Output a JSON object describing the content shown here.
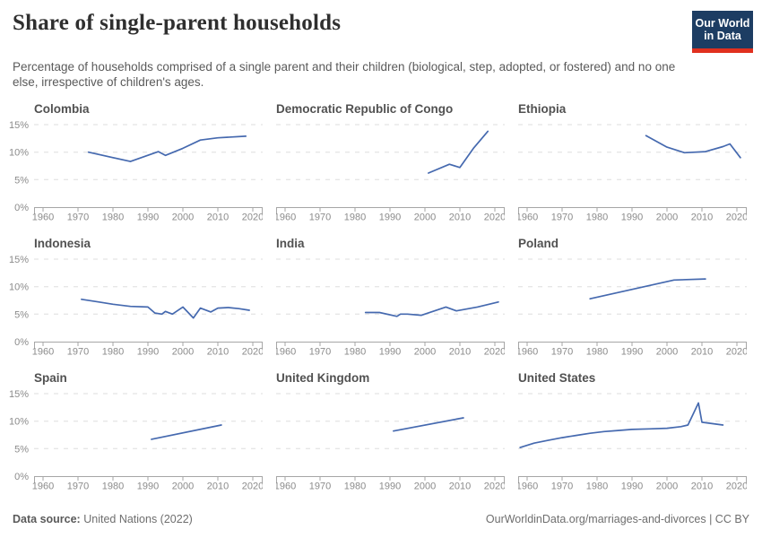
{
  "header": {
    "title": "Share of single-parent households",
    "subtitle": "Percentage of households comprised of a single parent and their children (biological, step, adopted, or fostered) and no one else, irrespective of children's ages.",
    "logo": {
      "line1": "Our World",
      "line2": "in Data",
      "bg": "#1d3d63",
      "accent": "#e0301f"
    }
  },
  "axis": {
    "xticks": [
      1960,
      1970,
      1980,
      1990,
      2000,
      2010,
      2020
    ],
    "yticks": [
      0,
      5,
      10,
      15
    ],
    "ylim": [
      0,
      15
    ],
    "xlim": [
      1957,
      2023
    ],
    "y_suffix": "%",
    "grid": "dashed horizontal lines at 5%, 10%, 15%"
  },
  "chart_data": [
    {
      "type": "line",
      "title": "Colombia",
      "show_y_labels": true,
      "points": [
        [
          1973,
          10.0
        ],
        [
          1985,
          8.3
        ],
        [
          1993,
          10.1
        ],
        [
          1995,
          9.4
        ],
        [
          2000,
          10.7
        ],
        [
          2005,
          12.2
        ],
        [
          2010,
          12.6
        ],
        [
          2018,
          12.9
        ]
      ]
    },
    {
      "type": "line",
      "title": "Democratic Republic of Congo",
      "show_y_labels": false,
      "points": [
        [
          2001,
          6.2
        ],
        [
          2007,
          7.8
        ],
        [
          2010,
          7.2
        ],
        [
          2014,
          10.8
        ],
        [
          2018,
          13.8
        ]
      ]
    },
    {
      "type": "line",
      "title": "Ethiopia",
      "show_y_labels": false,
      "points": [
        [
          1994,
          13.0
        ],
        [
          2000,
          10.9
        ],
        [
          2005,
          9.9
        ],
        [
          2011,
          10.1
        ],
        [
          2016,
          11.0
        ],
        [
          2018,
          11.5
        ],
        [
          2021,
          9.0
        ]
      ]
    },
    {
      "type": "line",
      "title": "Indonesia",
      "show_y_labels": true,
      "points": [
        [
          1971,
          7.7
        ],
        [
          1976,
          7.2
        ],
        [
          1980,
          6.8
        ],
        [
          1985,
          6.4
        ],
        [
          1990,
          6.3
        ],
        [
          1992,
          5.2
        ],
        [
          1994,
          5.0
        ],
        [
          1995,
          5.5
        ],
        [
          1997,
          5.0
        ],
        [
          2000,
          6.3
        ],
        [
          2003,
          4.3
        ],
        [
          2005,
          6.1
        ],
        [
          2008,
          5.4
        ],
        [
          2010,
          6.1
        ],
        [
          2013,
          6.2
        ],
        [
          2016,
          6.0
        ],
        [
          2019,
          5.7
        ]
      ]
    },
    {
      "type": "line",
      "title": "India",
      "show_y_labels": false,
      "points": [
        [
          1983,
          5.3
        ],
        [
          1987,
          5.3
        ],
        [
          1992,
          4.6
        ],
        [
          1993,
          5.0
        ],
        [
          1995,
          5.0
        ],
        [
          1999,
          4.8
        ],
        [
          2006,
          6.3
        ],
        [
          2009,
          5.6
        ],
        [
          2015,
          6.3
        ],
        [
          2021,
          7.2
        ]
      ]
    },
    {
      "type": "line",
      "title": "Poland",
      "show_y_labels": false,
      "points": [
        [
          1978,
          7.8
        ],
        [
          2002,
          11.2
        ],
        [
          2011,
          11.4
        ]
      ]
    },
    {
      "type": "line",
      "title": "Spain",
      "show_y_labels": true,
      "points": [
        [
          1991,
          6.7
        ],
        [
          2011,
          9.3
        ]
      ]
    },
    {
      "type": "line",
      "title": "United Kingdom",
      "show_y_labels": false,
      "points": [
        [
          1991,
          8.2
        ],
        [
          2011,
          10.6
        ]
      ]
    },
    {
      "type": "line",
      "title": "United States",
      "show_y_labels": false,
      "points": [
        [
          1958,
          5.2
        ],
        [
          1962,
          6.0
        ],
        [
          1966,
          6.5
        ],
        [
          1970,
          7.0
        ],
        [
          1974,
          7.4
        ],
        [
          1978,
          7.8
        ],
        [
          1982,
          8.1
        ],
        [
          1986,
          8.3
        ],
        [
          1990,
          8.5
        ],
        [
          1995,
          8.6
        ],
        [
          2000,
          8.7
        ],
        [
          2004,
          9.0
        ],
        [
          2006,
          9.3
        ],
        [
          2009,
          13.3
        ],
        [
          2010,
          9.8
        ],
        [
          2016,
          9.3
        ]
      ]
    }
  ],
  "styles": {
    "line_color": "#4569af",
    "grid_color": "#dedede",
    "axis_color": "#a6a6a6",
    "tick_color": "#8b8b8b"
  },
  "footer": {
    "source_label": "Data source:",
    "source_value": "United Nations (2022)",
    "url": "OurWorldinData.org/marriages-and-divorces",
    "license": " | CC BY"
  }
}
